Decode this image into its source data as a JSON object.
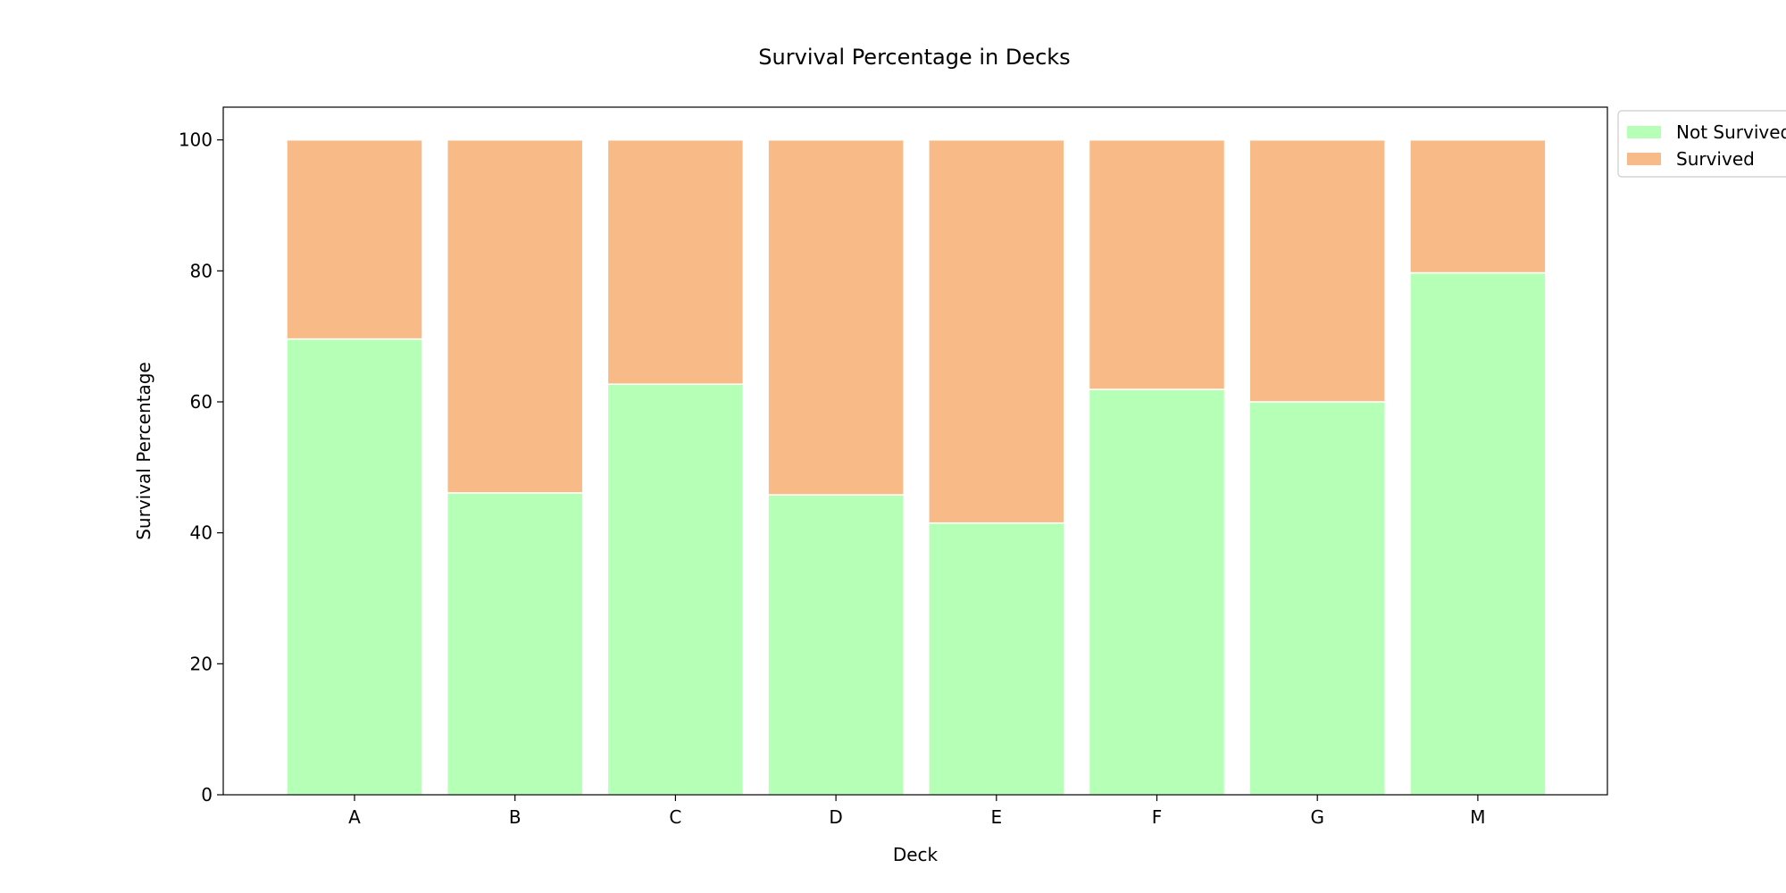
{
  "chart_data": {
    "type": "bar",
    "stacked": true,
    "title": "Survival Percentage in Decks",
    "xlabel": "Deck",
    "ylabel": "Survival Percentage",
    "categories": [
      "A",
      "B",
      "C",
      "D",
      "E",
      "F",
      "G",
      "M"
    ],
    "series": [
      {
        "name": "Not Survived",
        "color": "#b6ffb6",
        "values": [
          69.6,
          46.1,
          62.7,
          45.8,
          41.5,
          61.9,
          60.0,
          79.7
        ]
      },
      {
        "name": "Survived",
        "color": "#f8bb87",
        "values": [
          30.4,
          53.9,
          37.3,
          54.2,
          58.5,
          38.1,
          40.0,
          20.3
        ]
      }
    ],
    "ylim": [
      0,
      105
    ],
    "yticks": [
      0,
      20,
      40,
      60,
      80,
      100
    ],
    "grid": false,
    "legend": "outside-top-right"
  }
}
